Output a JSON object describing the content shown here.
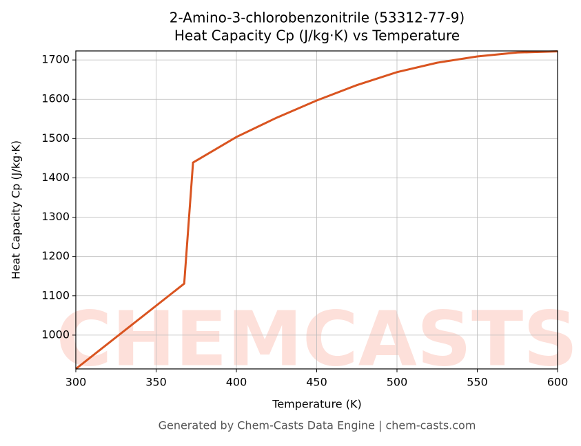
{
  "chart_data": {
    "type": "line",
    "title": "2-Amino-3-chlorobenzonitrile (53312-77-9)",
    "subtitle": "Heat Capacity Cp (J/kg·K) vs Temperature",
    "x_label": "Temperature (K)",
    "y_label": "Heat Capacity Cp (J/kg·K)",
    "footer": "Generated by Chem-Casts Data Engine | chem-casts.com",
    "watermark": "CHEMCASTS",
    "x": [
      300,
      367.5,
      373,
      400,
      425,
      450,
      475,
      500,
      525,
      550,
      575,
      600
    ],
    "series": [
      {
        "name": "Heat Capacity Cp",
        "color": "#d95420",
        "values": [
          914,
          1131,
          1439,
          1504,
          1553,
          1597,
          1636,
          1669,
          1693,
          1709,
          1719,
          1722
        ]
      }
    ],
    "xlim": [
      300,
      600
    ],
    "xticks": [
      300,
      350,
      400,
      450,
      500,
      550,
      600
    ],
    "ylim": [
      914,
      1723
    ],
    "yticks": [
      1000,
      1100,
      1200,
      1300,
      1400,
      1500,
      1600,
      1700
    ],
    "grid": true
  }
}
